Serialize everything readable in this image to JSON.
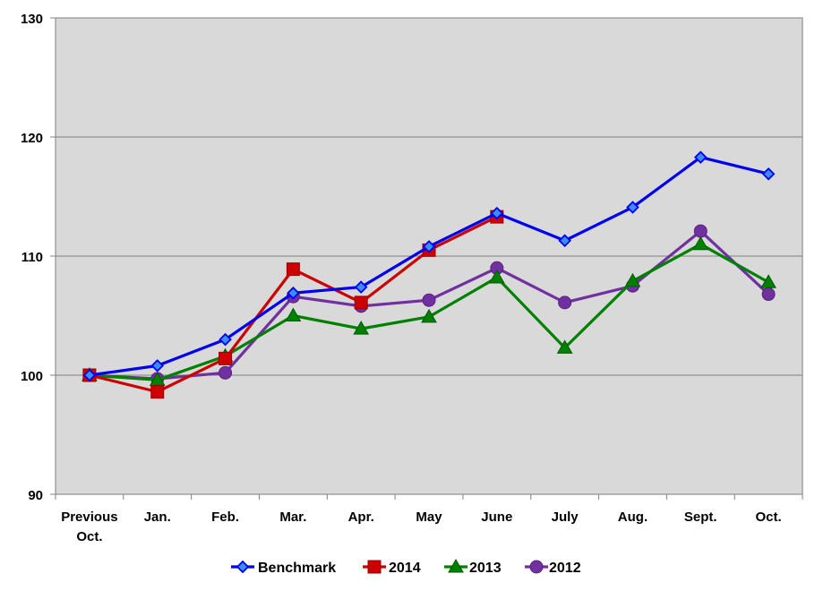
{
  "chart_data": {
    "type": "line",
    "categories": [
      [
        "Previous",
        "Oct."
      ],
      [
        "Jan."
      ],
      [
        "Feb."
      ],
      [
        "Mar."
      ],
      [
        "Apr."
      ],
      [
        "May"
      ],
      [
        "June"
      ],
      [
        "July"
      ],
      [
        "Aug."
      ],
      [
        "Sept."
      ],
      [
        "Oct."
      ]
    ],
    "ylim": [
      90,
      130
    ],
    "yticks": [
      90,
      100,
      110,
      120,
      130
    ],
    "grid": true,
    "legend_position": "bottom",
    "plot_background": "#d9d9d9",
    "series": [
      {
        "name": "Benchmark",
        "color": "#0000ee",
        "marker": "diamond",
        "values": [
          100,
          100.8,
          103.0,
          106.9,
          107.4,
          110.8,
          113.6,
          111.3,
          114.1,
          118.3,
          116.9
        ]
      },
      {
        "name": "2014",
        "color": "#cc0000",
        "marker": "square",
        "values": [
          100,
          98.6,
          101.4,
          108.9,
          106.1,
          110.5,
          113.3,
          null,
          null,
          null,
          null
        ]
      },
      {
        "name": "2013",
        "color": "#008000",
        "marker": "triangle",
        "values": [
          100,
          99.6,
          101.6,
          105.0,
          103.9,
          104.9,
          108.2,
          102.3,
          107.9,
          111.0,
          107.8
        ]
      },
      {
        "name": "2012",
        "color": "#7030a0",
        "marker": "circle",
        "values": [
          100,
          99.7,
          100.2,
          106.6,
          105.8,
          106.3,
          109.0,
          106.1,
          107.5,
          112.1,
          106.8
        ]
      }
    ]
  }
}
